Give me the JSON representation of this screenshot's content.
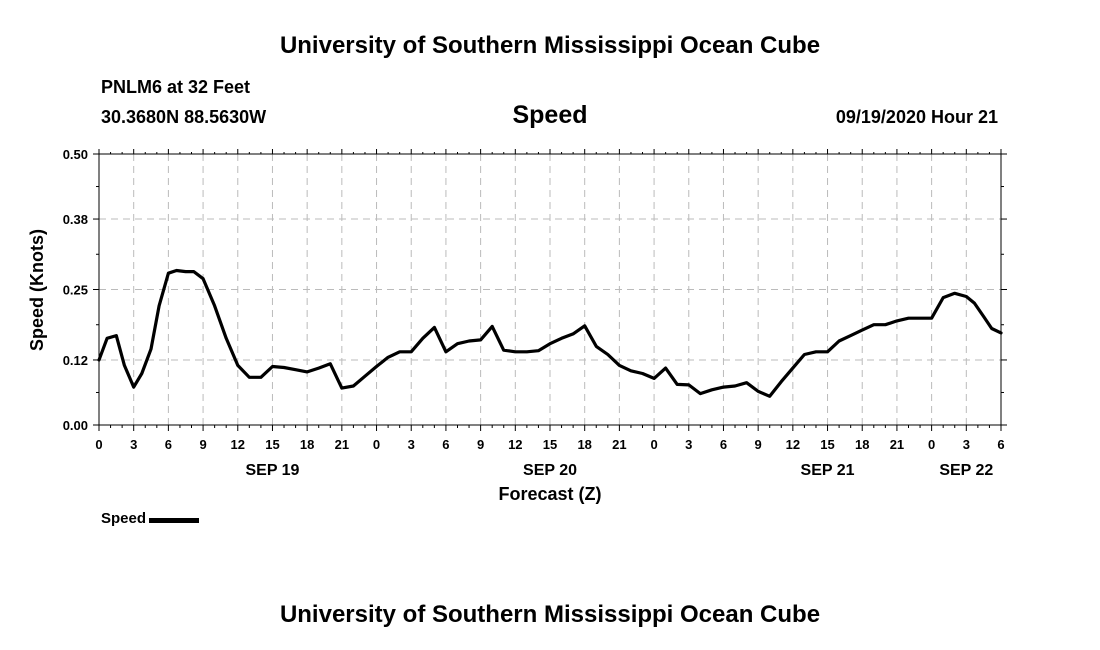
{
  "header": {
    "title": "University of Southern Mississippi Ocean Cube",
    "station": "PNLM6 at 32 Feet",
    "coordinates": "30.3680N 88.5630W",
    "datetime": "09/19/2020 Hour 21"
  },
  "footer": {
    "title": "University of Southern Mississippi Ocean Cube"
  },
  "colors": {
    "line": "#000000",
    "grid": "#bbbbbb",
    "axis": "#000000"
  },
  "chart_data": {
    "type": "line",
    "title": "Speed",
    "xlabel": "Forecast (Z)",
    "ylabel": "Speed (Knots)",
    "ylim": [
      0,
      0.5
    ],
    "y_ticks": [
      0.0,
      0.12,
      0.25,
      0.38,
      0.5
    ],
    "y_tick_labels": [
      "0.00",
      "0.12",
      "0.25",
      "0.38",
      "0.50"
    ],
    "xlim": [
      0,
      78
    ],
    "x_ticks": [
      0,
      3,
      6,
      9,
      12,
      15,
      18,
      21,
      24,
      27,
      30,
      33,
      36,
      39,
      42,
      45,
      48,
      51,
      54,
      57,
      60,
      63,
      66,
      69,
      72,
      75,
      78
    ],
    "x_tick_labels": [
      "0",
      "3",
      "6",
      "9",
      "12",
      "15",
      "18",
      "21",
      "0",
      "3",
      "6",
      "9",
      "12",
      "15",
      "18",
      "21",
      "0",
      "3",
      "6",
      "9",
      "12",
      "15",
      "18",
      "21",
      "0",
      "3",
      "6"
    ],
    "date_labels": [
      {
        "hour": 15,
        "label": "SEP 19"
      },
      {
        "hour": 39,
        "label": "SEP 20"
      },
      {
        "hour": 63,
        "label": "SEP 21"
      },
      {
        "hour": 75,
        "label": "SEP 22"
      }
    ],
    "grid": true,
    "legend": "bottom-left",
    "series": [
      {
        "name": "Speed",
        "x": [
          0,
          0.7,
          1.5,
          2.2,
          3,
          3.7,
          4.5,
          5.2,
          6,
          6.7,
          7.5,
          8.2,
          9,
          10,
          11,
          12,
          13,
          14,
          15,
          16,
          17,
          18,
          19,
          20,
          21,
          22,
          23,
          24,
          25,
          26,
          27,
          28,
          29,
          30,
          31,
          32,
          33,
          34,
          35,
          36,
          37,
          38,
          39,
          40,
          41,
          42,
          43,
          44,
          45,
          46,
          47,
          48,
          49,
          50,
          51,
          52,
          53,
          54,
          55,
          56,
          57,
          58,
          59,
          60,
          61,
          62,
          63,
          64,
          65,
          66,
          67,
          68,
          69,
          70,
          71,
          72,
          73,
          74,
          75,
          75.7,
          76.5,
          77.2,
          78
        ],
        "values": [
          0.12,
          0.16,
          0.165,
          0.11,
          0.07,
          0.095,
          0.14,
          0.22,
          0.28,
          0.285,
          0.283,
          0.283,
          0.27,
          0.22,
          0.16,
          0.11,
          0.088,
          0.088,
          0.108,
          0.106,
          0.102,
          0.098,
          0.105,
          0.113,
          0.068,
          0.072,
          0.09,
          0.108,
          0.125,
          0.135,
          0.135,
          0.16,
          0.18,
          0.135,
          0.15,
          0.155,
          0.157,
          0.182,
          0.138,
          0.135,
          0.135,
          0.137,
          0.15,
          0.16,
          0.168,
          0.183,
          0.145,
          0.13,
          0.11,
          0.1,
          0.095,
          0.086,
          0.105,
          0.075,
          0.074,
          0.058,
          0.065,
          0.07,
          0.072,
          0.078,
          0.062,
          0.053,
          0.08,
          0.105,
          0.13,
          0.135,
          0.135,
          0.155,
          0.165,
          0.175,
          0.185,
          0.185,
          0.192,
          0.197,
          0.197,
          0.197,
          0.235,
          0.243,
          0.237,
          0.225,
          0.2,
          0.178,
          0.17
        ]
      }
    ]
  }
}
